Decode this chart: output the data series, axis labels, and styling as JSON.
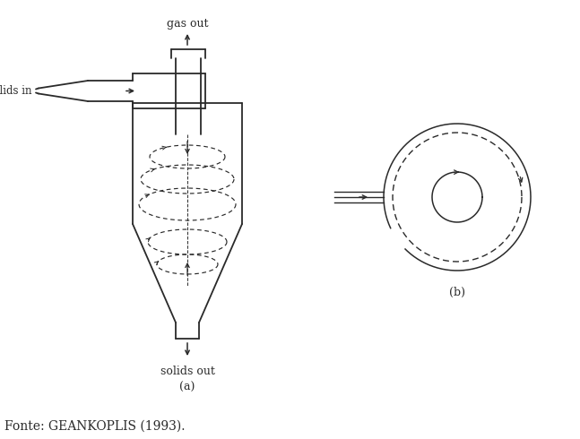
{
  "bg_color": "#ffffff",
  "line_color": "#2a2a2a",
  "title_a": "(a)",
  "title_b": "(b)",
  "label_gas_out": "gas out",
  "label_gas_solids": "gas–solids in",
  "label_solids_out": "solids out",
  "fonte": "Fonte: GEANKOPLIS (1993).",
  "fig_width": 6.47,
  "fig_height": 4.9,
  "dpi": 100
}
